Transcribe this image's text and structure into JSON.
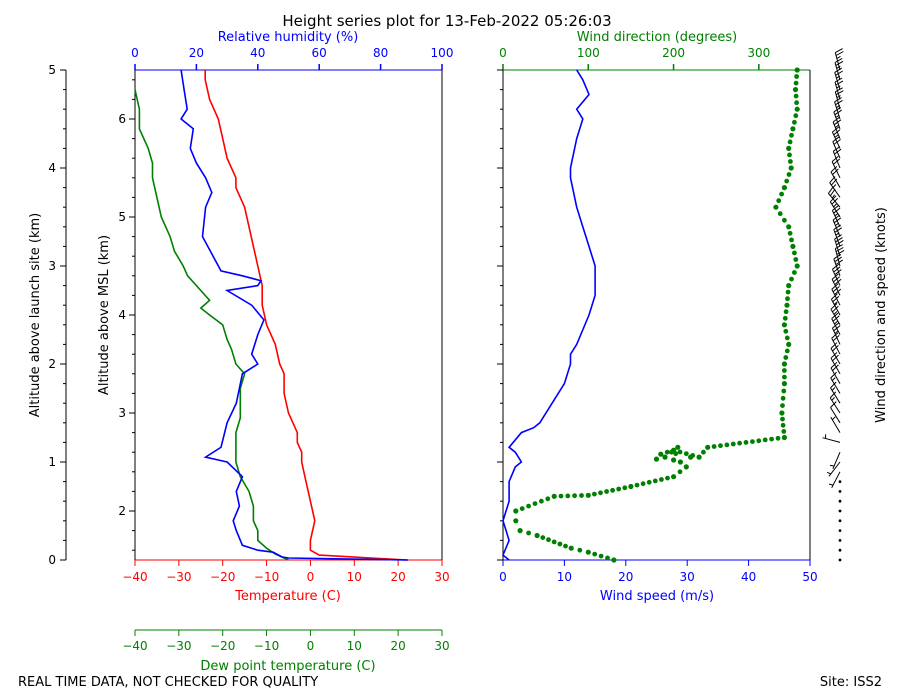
{
  "chart_data": {
    "type": "line",
    "title": "Height series plot for 13-Feb-2022 05:26:03",
    "footer_left": "REAL TIME DATA, NOT CHECKED FOR QUALITY",
    "footer_right": "Site: ISS2",
    "colors": {
      "temp": "#ff0000",
      "dew": "#008000",
      "rh": "#0000ff",
      "wspd": "#0000ff",
      "wdir": "#008000",
      "axis": "#000000"
    },
    "left_panel": {
      "x_bottom_label": "Temperature (C)",
      "x_bottom2_label": "Dew point temperature (C)",
      "x_top_label": "Relative humidity (%)",
      "x_temp_range": [
        -40,
        30
      ],
      "x_temp_ticks": [
        -40,
        -30,
        -20,
        -10,
        0,
        10,
        20,
        30
      ],
      "x_rh_range": [
        0,
        100
      ],
      "x_rh_ticks": [
        0,
        20,
        40,
        60,
        80,
        100
      ],
      "y_agl_label": "Altitude above launch site (km)",
      "y_agl_range": [
        0,
        5
      ],
      "y_agl_ticks": [
        0,
        1,
        2,
        3,
        4,
        5
      ],
      "y_msl_label": "Altitude above MSL (km)",
      "y_msl_ticks": [
        2,
        3,
        4,
        5,
        6
      ],
      "y_msl_offset_km": 1.5,
      "series": [
        {
          "name": "Temperature",
          "key": "temp",
          "x_axis": "temp",
          "points": [
            [
              22,
              0.0
            ],
            [
              10,
              0.03
            ],
            [
              2,
              0.05
            ],
            [
              0,
              0.1
            ],
            [
              0,
              0.2
            ],
            [
              1,
              0.4
            ],
            [
              0,
              0.6
            ],
            [
              -1,
              0.8
            ],
            [
              -2,
              1.0
            ],
            [
              -2,
              1.1
            ],
            [
              -3,
              1.2
            ],
            [
              -3,
              1.3
            ],
            [
              -4,
              1.4
            ],
            [
              -5,
              1.5
            ],
            [
              -6,
              1.7
            ],
            [
              -6,
              1.9
            ],
            [
              -7,
              2.0
            ],
            [
              -8,
              2.2
            ],
            [
              -10,
              2.4
            ],
            [
              -11,
              2.6
            ],
            [
              -11,
              2.8
            ],
            [
              -12,
              3.0
            ],
            [
              -13,
              3.2
            ],
            [
              -14,
              3.4
            ],
            [
              -15,
              3.6
            ],
            [
              -17,
              3.8
            ],
            [
              -17,
              3.9
            ],
            [
              -19,
              4.1
            ],
            [
              -20,
              4.3
            ],
            [
              -21,
              4.5
            ],
            [
              -23,
              4.7
            ],
            [
              -24,
              4.9
            ],
            [
              -24,
              5.0
            ]
          ]
        },
        {
          "name": "Dew point",
          "key": "dew",
          "x_axis": "temp",
          "points": [
            [
              -5,
              0.0
            ],
            [
              -6,
              0.02
            ],
            [
              -8,
              0.06
            ],
            [
              -10,
              0.12
            ],
            [
              -12,
              0.2
            ],
            [
              -12,
              0.3
            ],
            [
              -13,
              0.4
            ],
            [
              -13,
              0.55
            ],
            [
              -14,
              0.7
            ],
            [
              -16,
              0.85
            ],
            [
              -17,
              1.0
            ],
            [
              -17,
              1.15
            ],
            [
              -17,
              1.3
            ],
            [
              -16,
              1.45
            ],
            [
              -16,
              1.6
            ],
            [
              -16,
              1.75
            ],
            [
              -15,
              1.9
            ],
            [
              -17,
              2.0
            ],
            [
              -18,
              2.15
            ],
            [
              -19,
              2.25
            ],
            [
              -20,
              2.4
            ],
            [
              -23,
              2.5
            ],
            [
              -25,
              2.57
            ],
            [
              -23,
              2.65
            ],
            [
              -25,
              2.75
            ],
            [
              -28,
              2.9
            ],
            [
              -29,
              3.0
            ],
            [
              -31,
              3.15
            ],
            [
              -32,
              3.3
            ],
            [
              -34,
              3.5
            ],
            [
              -35,
              3.7
            ],
            [
              -36,
              3.9
            ],
            [
              -36,
              4.05
            ],
            [
              -37,
              4.2
            ],
            [
              -39,
              4.4
            ],
            [
              -39,
              4.6
            ],
            [
              -40,
              4.8
            ]
          ]
        },
        {
          "name": "Relative humidity",
          "key": "rh",
          "x_axis": "rh",
          "points": [
            [
              89,
              0.0
            ],
            [
              50,
              0.02
            ],
            [
              48,
              0.03
            ],
            [
              45,
              0.08
            ],
            [
              40,
              0.1
            ],
            [
              35,
              0.15
            ],
            [
              33,
              0.3
            ],
            [
              32,
              0.4
            ],
            [
              34,
              0.55
            ],
            [
              33,
              0.7
            ],
            [
              35,
              0.85
            ],
            [
              30,
              1.0
            ],
            [
              23,
              1.05
            ],
            [
              28,
              1.15
            ],
            [
              30,
              1.4
            ],
            [
              33,
              1.6
            ],
            [
              35,
              1.9
            ],
            [
              40,
              2.0
            ],
            [
              38,
              2.1
            ],
            [
              40,
              2.3
            ],
            [
              42,
              2.45
            ],
            [
              38,
              2.6
            ],
            [
              30,
              2.75
            ],
            [
              40,
              2.8
            ],
            [
              41,
              2.85
            ],
            [
              35,
              2.9
            ],
            [
              28,
              2.95
            ],
            [
              22,
              3.3
            ],
            [
              23,
              3.6
            ],
            [
              25,
              3.75
            ],
            [
              23,
              3.9
            ],
            [
              20,
              4.05
            ],
            [
              18,
              4.2
            ],
            [
              19,
              4.4
            ],
            [
              15,
              4.5
            ],
            [
              17,
              4.6
            ],
            [
              16,
              4.8
            ],
            [
              15,
              5.0
            ]
          ]
        }
      ]
    },
    "right_panel": {
      "x_bottom_label": "Wind speed (m/s)",
      "x_speed_range": [
        0,
        50
      ],
      "x_speed_ticks": [
        0,
        10,
        20,
        30,
        40,
        50
      ],
      "x_top_label": "Wind direction (degrees)",
      "x_dir_range": [
        0,
        360
      ],
      "x_dir_ticks": [
        0,
        100,
        200,
        300
      ],
      "y_range": [
        0,
        5
      ],
      "series": [
        {
          "name": "Wind speed",
          "key": "wspd",
          "x_axis": "speed",
          "points": [
            [
              1,
              0.0
            ],
            [
              0,
              0.05
            ],
            [
              1,
              0.2
            ],
            [
              0,
              0.4
            ],
            [
              1,
              0.6
            ],
            [
              1,
              0.8
            ],
            [
              2,
              0.95
            ],
            [
              3,
              1.0
            ],
            [
              2,
              1.1
            ],
            [
              1,
              1.15
            ],
            [
              3,
              1.3
            ],
            [
              5,
              1.35
            ],
            [
              6,
              1.4
            ],
            [
              8,
              1.6
            ],
            [
              10,
              1.8
            ],
            [
              11,
              2.0
            ],
            [
              11,
              2.1
            ],
            [
              12,
              2.2
            ],
            [
              14,
              2.5
            ],
            [
              15,
              2.7
            ],
            [
              15,
              3.0
            ],
            [
              14,
              3.2
            ],
            [
              13,
              3.4
            ],
            [
              12,
              3.6
            ],
            [
              11,
              3.9
            ],
            [
              11,
              4.0
            ],
            [
              12,
              4.3
            ],
            [
              13,
              4.5
            ],
            [
              12,
              4.6
            ],
            [
              14,
              4.75
            ],
            [
              13,
              4.9
            ],
            [
              12,
              5.0
            ]
          ]
        },
        {
          "name": "Wind direction",
          "key": "wdir",
          "x_axis": "dir",
          "points": [
            [
              130,
              0.0
            ],
            [
              100,
              0.08
            ],
            [
              80,
              0.12
            ],
            [
              40,
              0.25
            ],
            [
              20,
              0.3
            ],
            [
              15,
              0.4
            ],
            [
              15,
              0.5
            ],
            [
              60,
              0.65
            ],
            [
              100,
              0.66
            ],
            [
              150,
              0.75
            ],
            [
              200,
              0.85
            ],
            [
              215,
              0.95
            ],
            [
              220,
              1.05
            ],
            [
              208,
              1.0
            ],
            [
              200,
              1.02
            ],
            [
              205,
              1.15
            ],
            [
              190,
              1.05
            ],
            [
              180,
              1.03
            ],
            [
              185,
              1.08
            ],
            [
              200,
              1.12
            ],
            [
              230,
              1.05
            ],
            [
              240,
              1.15
            ],
            [
              330,
              1.25
            ],
            [
              327,
              1.5
            ],
            [
              330,
              1.8
            ],
            [
              330,
              2.0
            ],
            [
              335,
              2.2
            ],
            [
              330,
              2.4
            ],
            [
              333,
              2.6
            ],
            [
              335,
              2.8
            ],
            [
              345,
              3.0
            ],
            [
              340,
              3.2
            ],
            [
              335,
              3.4
            ],
            [
              320,
              3.6
            ],
            [
              330,
              3.8
            ],
            [
              338,
              4.0
            ],
            [
              335,
              4.2
            ],
            [
              340,
              4.4
            ],
            [
              345,
              4.6
            ],
            [
              343,
              4.8
            ],
            [
              345,
              5.0
            ]
          ]
        }
      ]
    },
    "barb_panel": {
      "label": "Wind direction and speed (knots)"
    }
  }
}
